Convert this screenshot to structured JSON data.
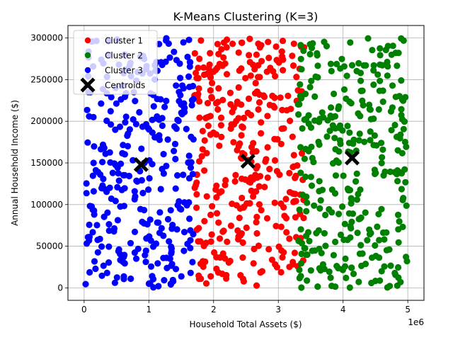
{
  "chart_data": {
    "type": "scatter",
    "title": "K-Means Clustering (K=3)",
    "xlabel": "Household Total Assets ($)",
    "ylabel": "Annual Household Income ($)",
    "x_offset_label": "1e6",
    "xlim": [
      -250000,
      5250000
    ],
    "ylim": [
      -15000,
      315000
    ],
    "x_ticks": [
      0,
      1000000,
      2000000,
      3000000,
      4000000,
      5000000
    ],
    "x_tick_labels": [
      "0",
      "1",
      "2",
      "3",
      "4",
      "5"
    ],
    "y_ticks": [
      0,
      50000,
      100000,
      150000,
      200000,
      250000,
      300000
    ],
    "y_tick_labels": [
      "0",
      "50000",
      "100000",
      "150000",
      "200000",
      "250000",
      "300000"
    ],
    "grid": true,
    "legend_position": "top-left",
    "series": [
      {
        "name": "Cluster 1",
        "color": "#ff0000",
        "x_range": [
          1700000,
          3400000
        ],
        "y_range": [
          0,
          300000
        ],
        "count": 330
      },
      {
        "name": "Cluster 2",
        "color": "#008000",
        "x_range": [
          3300000,
          5000000
        ],
        "y_range": [
          0,
          300000
        ],
        "count": 330
      },
      {
        "name": "Cluster 3",
        "color": "#0000ff",
        "x_range": [
          0,
          1700000
        ],
        "y_range": [
          0,
          300000
        ],
        "count": 330
      }
    ],
    "centroids": {
      "name": "Centroids",
      "color": "#000000",
      "marker": "x",
      "points": [
        {
          "x": 880000,
          "y": 148000
        },
        {
          "x": 2530000,
          "y": 152000
        },
        {
          "x": 4140000,
          "y": 156000
        }
      ]
    }
  }
}
